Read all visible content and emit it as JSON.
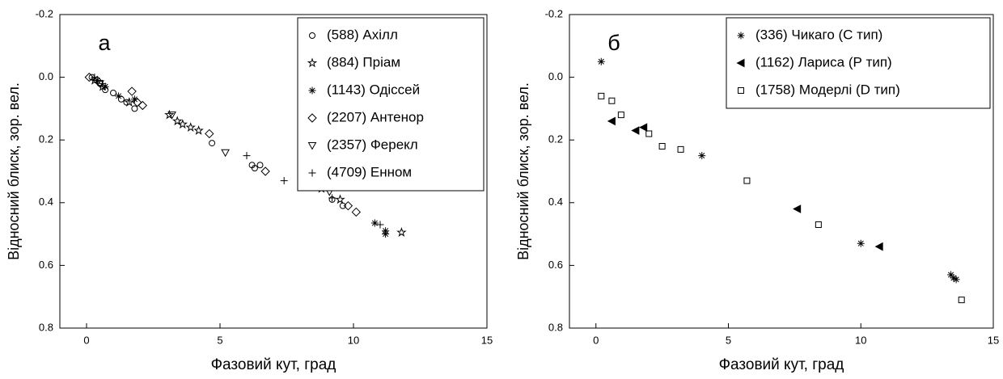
{
  "chart_data": [
    {
      "type": "scatter",
      "label": "а",
      "x_label": "Фазовий кут, град",
      "y_label": "Відносний блиск, зор. вел.",
      "xlim": [
        -1,
        15
      ],
      "ylim": [
        -0.2,
        0.8
      ],
      "y_inverted": true,
      "xticks": [
        0,
        5,
        10,
        15
      ],
      "yticks": [
        -0.2,
        {
          "value": 0,
          "label": "0.0"
        },
        0.2,
        0.4,
        0.6,
        0.8
      ],
      "legend": "upper right",
      "series": [
        {
          "name": "(588) Ахілл",
          "marker": "circle",
          "color": "#000000",
          "x": [
            0.2,
            0.5,
            0.7,
            1.0,
            1.3,
            1.5,
            1.8,
            4.7,
            6.2,
            6.3,
            6.5,
            9.2,
            9.6
          ],
          "y": [
            0.0,
            0.02,
            0.04,
            0.05,
            0.07,
            0.08,
            0.1,
            0.21,
            0.28,
            0.29,
            0.28,
            0.39,
            0.41
          ]
        },
        {
          "name": "(884) Пріам",
          "marker": "star",
          "color": "#000000",
          "x": [
            0.3,
            0.6,
            1.6,
            3.1,
            3.4,
            3.6,
            3.9,
            4.2,
            8.8,
            9.5,
            11.8
          ],
          "y": [
            0.01,
            0.03,
            0.08,
            0.12,
            0.14,
            0.15,
            0.16,
            0.17,
            0.355,
            0.39,
            0.495
          ]
        },
        {
          "name": "(1143) Одіссей",
          "marker": "asterisk",
          "color": "#000000",
          "x": [
            0.4,
            0.7,
            1.2,
            1.8,
            8.1,
            8.3,
            10.8,
            11.2,
            11.2
          ],
          "y": [
            0.01,
            0.03,
            0.06,
            0.07,
            0.35,
            0.35,
            0.465,
            0.49,
            0.5
          ]
        },
        {
          "name": "(2207) Антенор",
          "marker": "diamond",
          "color": "#000000",
          "x": [
            0.1,
            0.4,
            1.7,
            1.9,
            2.1,
            4.6,
            6.7,
            9.8,
            10.1
          ],
          "y": [
            0.0,
            0.01,
            0.045,
            0.08,
            0.09,
            0.18,
            0.3,
            0.41,
            0.43
          ]
        },
        {
          "name": "(2357) Ферекл",
          "marker": "triangle-down",
          "color": "#000000",
          "x": [
            0.5,
            3.2,
            5.2,
            8.2,
            9.1
          ],
          "y": [
            0.02,
            0.12,
            0.24,
            0.31,
            0.365
          ]
        },
        {
          "name": "(4709) Енном",
          "marker": "plus",
          "color": "#000000",
          "x": [
            0.3,
            0.6,
            6.0,
            7.4,
            9.2,
            11.0
          ],
          "y": [
            0.0,
            0.02,
            0.25,
            0.33,
            0.385,
            0.47
          ]
        }
      ]
    },
    {
      "type": "scatter",
      "label": "б",
      "x_label": "Фазовий кут, град",
      "y_label": "Відносний блиск, зор. вел.",
      "xlim": [
        -1,
        15
      ],
      "ylim": [
        -0.2,
        0.8
      ],
      "y_inverted": true,
      "xticks": [
        0,
        5,
        10,
        15
      ],
      "yticks": [
        -0.2,
        {
          "value": 0,
          "label": "0.0"
        },
        0.2,
        0.4,
        0.6,
        0.8
      ],
      "legend": "upper right",
      "series": [
        {
          "name": "(336) Чикаго (С тип)",
          "marker": "asterisk",
          "color": "#000000",
          "x": [
            0.2,
            4.0,
            10.0,
            13.4,
            13.5,
            13.6
          ],
          "y": [
            -0.05,
            0.25,
            0.53,
            0.63,
            0.64,
            0.645
          ]
        },
        {
          "name": "(1162) Лариса (Р тип)",
          "marker": "triangle-left",
          "filled": true,
          "color": "#000000",
          "x": [
            0.6,
            1.5,
            1.8,
            7.6,
            10.7
          ],
          "y": [
            0.14,
            0.17,
            0.16,
            0.42,
            0.54
          ]
        },
        {
          "name": "(1758) Модерлі (D тип)",
          "marker": "square",
          "color": "#000000",
          "x": [
            0.2,
            0.6,
            0.95,
            2.0,
            2.5,
            3.2,
            5.7,
            8.4,
            13.8
          ],
          "y": [
            0.06,
            0.075,
            0.12,
            0.18,
            0.22,
            0.23,
            0.33,
            0.47,
            0.71
          ]
        }
      ]
    }
  ]
}
